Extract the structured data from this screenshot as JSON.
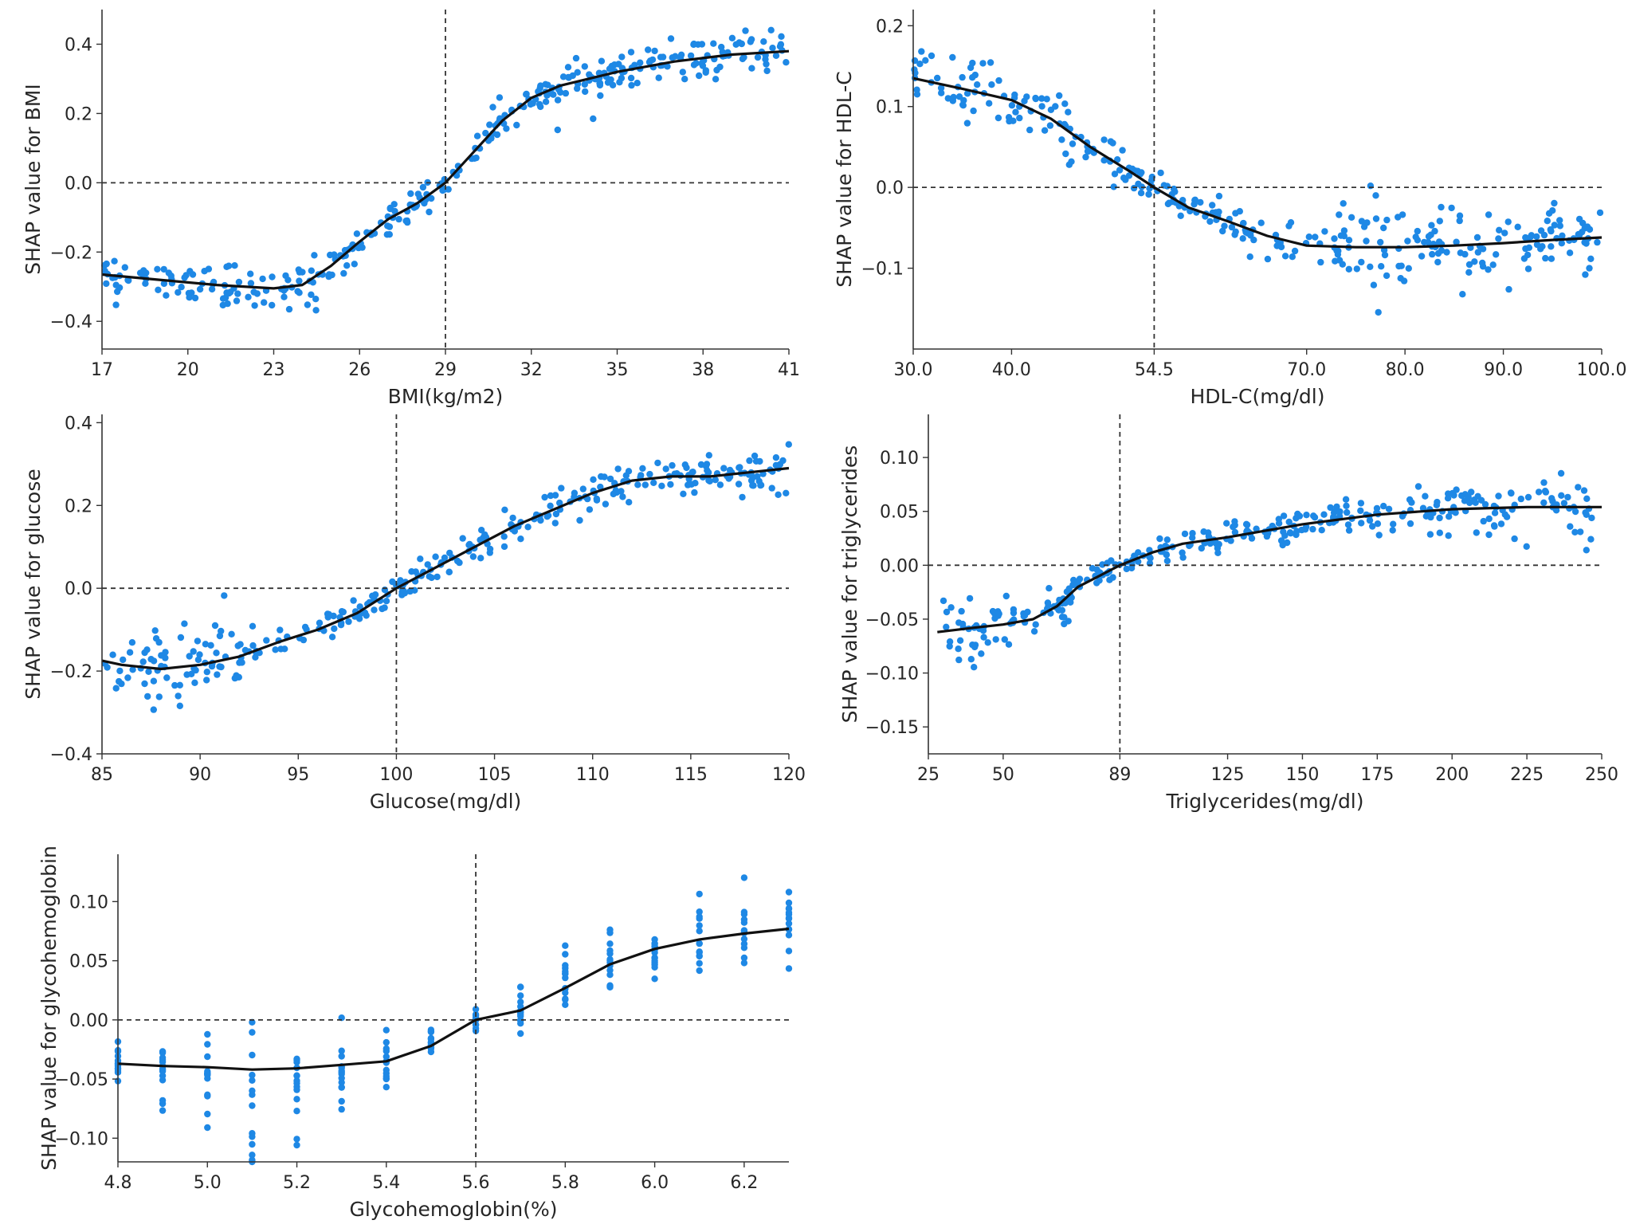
{
  "colors": {
    "point": "#1E88E5",
    "curve": "#111111",
    "axis": "#333333",
    "reference": "#333333"
  },
  "chart_data": [
    {
      "type": "scatter",
      "id": "bmi",
      "xlabel": "BMI(kg/m2)",
      "ylabel": "SHAP value for BMI",
      "xlim": [
        17,
        41
      ],
      "ylim": [
        -0.48,
        0.5
      ],
      "xticks": [
        17,
        20,
        23,
        26,
        29,
        32,
        35,
        38,
        41
      ],
      "xtick_labels": [
        "17",
        "20",
        "23",
        "26",
        "29",
        "32",
        "35",
        "38",
        "41"
      ],
      "yticks": [
        -0.4,
        -0.2,
        0.0,
        0.2,
        0.4
      ],
      "ytick_labels": [
        "−0.4",
        "−0.2",
        "0.0",
        "0.2",
        "0.4"
      ],
      "vline": 29,
      "hline": 0,
      "curve": [
        [
          17,
          -0.265
        ],
        [
          19,
          -0.28
        ],
        [
          21,
          -0.295
        ],
        [
          23,
          -0.305
        ],
        [
          24,
          -0.295
        ],
        [
          25,
          -0.24
        ],
        [
          26,
          -0.17
        ],
        [
          27,
          -0.105
        ],
        [
          28,
          -0.06
        ],
        [
          29,
          0.0
        ],
        [
          30,
          0.09
        ],
        [
          31,
          0.18
        ],
        [
          32,
          0.245
        ],
        [
          33,
          0.28
        ],
        [
          35,
          0.32
        ],
        [
          37,
          0.35
        ],
        [
          39,
          0.37
        ],
        [
          41,
          0.38
        ]
      ],
      "scatter": {
        "n": 340,
        "x_range": [
          17,
          41
        ],
        "spread": [
          [
            17,
            0.05
          ],
          [
            24,
            0.06
          ],
          [
            26,
            0.035
          ],
          [
            29,
            0.03
          ],
          [
            32,
            0.05
          ],
          [
            41,
            0.045
          ]
        ]
      }
    },
    {
      "type": "scatter",
      "id": "hdl",
      "xlabel": "HDL-C(mg/dl)",
      "ylabel": "SHAP value for HDL-C",
      "xlim": [
        30,
        100
      ],
      "ylim": [
        -0.2,
        0.22
      ],
      "xticks": [
        30,
        40,
        54.5,
        70,
        80,
        90,
        100
      ],
      "xtick_labels": [
        "30.0",
        "40.0",
        "54.5",
        "70.0",
        "80.0",
        "90.0",
        "100.0"
      ],
      "yticks": [
        -0.1,
        0.0,
        0.1,
        0.2
      ],
      "ytick_labels": [
        "−0.1",
        "0.0",
        "0.1",
        "0.2"
      ],
      "vline": 54.5,
      "hline": 0,
      "curve": [
        [
          30,
          0.135
        ],
        [
          35,
          0.122
        ],
        [
          40,
          0.108
        ],
        [
          44,
          0.085
        ],
        [
          48,
          0.05
        ],
        [
          52,
          0.02
        ],
        [
          54.5,
          0.0
        ],
        [
          58,
          -0.025
        ],
        [
          62,
          -0.042
        ],
        [
          66,
          -0.06
        ],
        [
          70,
          -0.072
        ],
        [
          75,
          -0.074
        ],
        [
          80,
          -0.074
        ],
        [
          85,
          -0.072
        ],
        [
          90,
          -0.069
        ],
        [
          95,
          -0.065
        ],
        [
          100,
          -0.062
        ]
      ],
      "scatter": {
        "n": 330,
        "x_range": [
          30,
          100
        ],
        "spread": [
          [
            30,
            0.04
          ],
          [
            44,
            0.03
          ],
          [
            54.5,
            0.015
          ],
          [
            66,
            0.02
          ],
          [
            75,
            0.045
          ],
          [
            100,
            0.035
          ]
        ]
      }
    },
    {
      "type": "scatter",
      "id": "glucose",
      "xlabel": "Glucose(mg/dl)",
      "ylabel": "SHAP value for glucose",
      "xlim": [
        85,
        120
      ],
      "ylim": [
        -0.4,
        0.42
      ],
      "xticks": [
        85,
        90,
        95,
        100,
        105,
        110,
        115,
        120
      ],
      "xtick_labels": [
        "85",
        "90",
        "95",
        "100",
        "105",
        "110",
        "115",
        "120"
      ],
      "yticks": [
        -0.4,
        -0.2,
        0.0,
        0.2,
        0.4
      ],
      "ytick_labels": [
        "−0.4",
        "−0.2",
        "0.0",
        "0.2",
        "0.4"
      ],
      "vline": 100,
      "hline": 0,
      "curve": [
        [
          85,
          -0.175
        ],
        [
          86,
          -0.185
        ],
        [
          88,
          -0.195
        ],
        [
          90,
          -0.185
        ],
        [
          92,
          -0.165
        ],
        [
          94,
          -0.13
        ],
        [
          96,
          -0.1
        ],
        [
          98,
          -0.06
        ],
        [
          100,
          0.0
        ],
        [
          102,
          0.05
        ],
        [
          104,
          0.1
        ],
        [
          106,
          0.15
        ],
        [
          108,
          0.19
        ],
        [
          110,
          0.23
        ],
        [
          112,
          0.26
        ],
        [
          114,
          0.27
        ],
        [
          116,
          0.27
        ],
        [
          118,
          0.28
        ],
        [
          120,
          0.29
        ]
      ],
      "scatter": {
        "n": 320,
        "x_range": [
          85,
          120
        ],
        "spread": [
          [
            85,
            0.07
          ],
          [
            92,
            0.07
          ],
          [
            95,
            0.03
          ],
          [
            100,
            0.03
          ],
          [
            110,
            0.035
          ],
          [
            120,
            0.05
          ]
        ]
      }
    },
    {
      "type": "scatter",
      "id": "triglycerides",
      "xlabel": "Triglycerides(mg/dl)",
      "ylabel": "SHAP value for triglycerides",
      "xlim": [
        25,
        250
      ],
      "ylim": [
        -0.175,
        0.14
      ],
      "xticks": [
        25,
        50,
        89,
        125,
        150,
        175,
        200,
        225,
        250
      ],
      "xtick_labels": [
        "25",
        "50",
        "89",
        "125",
        "150",
        "175",
        "200",
        "225",
        "250"
      ],
      "yticks": [
        -0.15,
        -0.1,
        -0.05,
        0.0,
        0.05,
        0.1
      ],
      "ytick_labels": [
        "−0.15",
        "−0.10",
        "−0.05",
        "0.00",
        "0.05",
        "0.10"
      ],
      "vline": 89,
      "hline": 0,
      "curve": [
        [
          28,
          -0.062
        ],
        [
          40,
          -0.058
        ],
        [
          50,
          -0.055
        ],
        [
          60,
          -0.05
        ],
        [
          68,
          -0.038
        ],
        [
          75,
          -0.02
        ],
        [
          82,
          -0.01
        ],
        [
          89,
          0.0
        ],
        [
          100,
          0.012
        ],
        [
          110,
          0.02
        ],
        [
          125,
          0.026
        ],
        [
          150,
          0.038
        ],
        [
          175,
          0.047
        ],
        [
          200,
          0.052
        ],
        [
          225,
          0.054
        ],
        [
          250,
          0.054
        ]
      ],
      "scatter": {
        "n": 330,
        "x_range": [
          28,
          248
        ],
        "spread": [
          [
            28,
            0.025
          ],
          [
            60,
            0.022
          ],
          [
            75,
            0.012
          ],
          [
            89,
            0.01
          ],
          [
            150,
            0.012
          ],
          [
            250,
            0.025
          ]
        ]
      }
    },
    {
      "type": "scatter",
      "id": "glycohemoglobin",
      "xlabel": "Glycohemoglobin(%)",
      "ylabel": "SHAP value for glycohemoglobin",
      "xlim": [
        4.8,
        6.3
      ],
      "ylim": [
        -0.12,
        0.14
      ],
      "xticks": [
        4.8,
        5.0,
        5.2,
        5.4,
        5.6,
        5.8,
        6.0,
        6.2
      ],
      "xtick_labels": [
        "4.8",
        "5.0",
        "5.2",
        "5.4",
        "5.6",
        "5.8",
        "6.0",
        "6.2"
      ],
      "yticks": [
        -0.1,
        -0.05,
        0.0,
        0.05,
        0.1
      ],
      "ytick_labels": [
        "−0.10",
        "−0.05",
        "0.00",
        "0.05",
        "0.10"
      ],
      "vline": 5.6,
      "hline": 0,
      "curve": [
        [
          4.8,
          -0.037
        ],
        [
          4.9,
          -0.039
        ],
        [
          5.0,
          -0.04
        ],
        [
          5.1,
          -0.042
        ],
        [
          5.2,
          -0.041
        ],
        [
          5.3,
          -0.038
        ],
        [
          5.4,
          -0.035
        ],
        [
          5.5,
          -0.022
        ],
        [
          5.6,
          0.0
        ],
        [
          5.7,
          0.008
        ],
        [
          5.8,
          0.027
        ],
        [
          5.9,
          0.047
        ],
        [
          6.0,
          0.06
        ],
        [
          6.1,
          0.068
        ],
        [
          6.2,
          0.073
        ],
        [
          6.3,
          0.077
        ]
      ],
      "scatter": {
        "discrete_x": [
          4.8,
          4.9,
          5.0,
          5.1,
          5.2,
          5.3,
          5.4,
          5.5,
          5.6,
          5.7,
          5.8,
          5.9,
          6.0,
          6.1,
          6.2,
          6.3
        ],
        "per_x": 14,
        "spread": [
          [
            4.8,
            0.01
          ],
          [
            5.0,
            0.03
          ],
          [
            5.1,
            0.035
          ],
          [
            5.3,
            0.025
          ],
          [
            5.5,
            0.01
          ],
          [
            5.6,
            0.008
          ],
          [
            5.8,
            0.018
          ],
          [
            6.0,
            0.014
          ],
          [
            6.2,
            0.025
          ],
          [
            6.3,
            0.02
          ]
        ]
      }
    }
  ]
}
